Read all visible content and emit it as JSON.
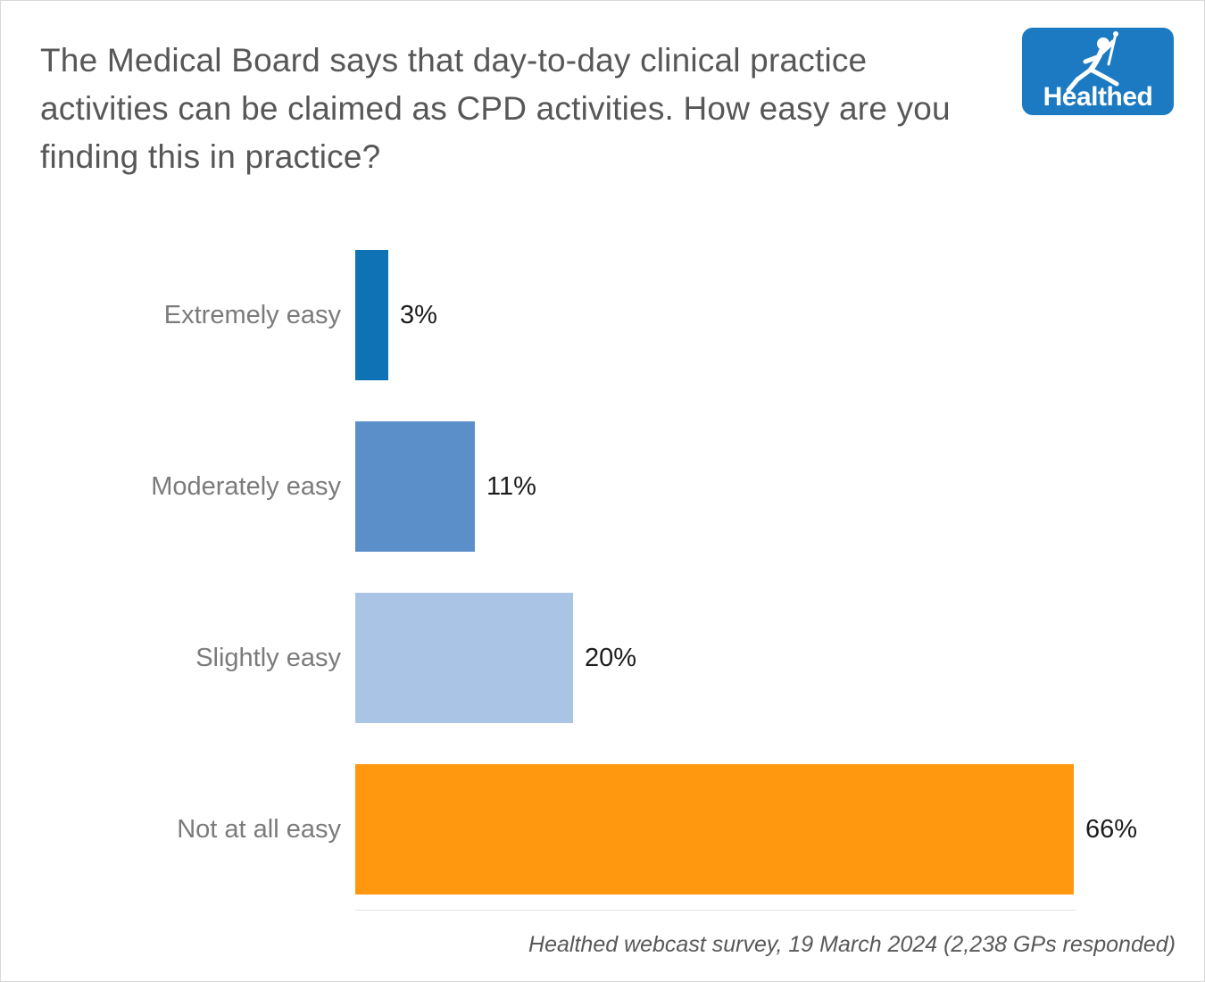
{
  "title": "The Medical Board says that day-to-day clinical practice activities can be claimed as CPD activities. How easy are you finding this in practice?",
  "logo": {
    "text": "Healthed",
    "background": "#1b7ac2"
  },
  "caption": "Healthed webcast survey, 19 March 2024 (2,238 GPs responded)",
  "chart_data": {
    "type": "bar",
    "orientation": "horizontal",
    "title": "The Medical Board says that day-to-day clinical practice activities can be claimed as CPD activities. How easy are you finding this in practice?",
    "categories": [
      "Extremely easy",
      "Moderately easy",
      "Slightly easy",
      "Not at all easy"
    ],
    "values": [
      3,
      11,
      20,
      66
    ],
    "value_labels": [
      "3%",
      "11%",
      "20%",
      "66%"
    ],
    "colors": [
      "#0e72b5",
      "#5b8fc9",
      "#a9c4e4",
      "#ff980e"
    ],
    "xlabel": "",
    "ylabel": "",
    "xlim": [
      0,
      66
    ],
    "grid": "off",
    "legend": "none",
    "source_note": "Healthed webcast survey, 19 March 2024 (2,238 GPs responded)"
  }
}
